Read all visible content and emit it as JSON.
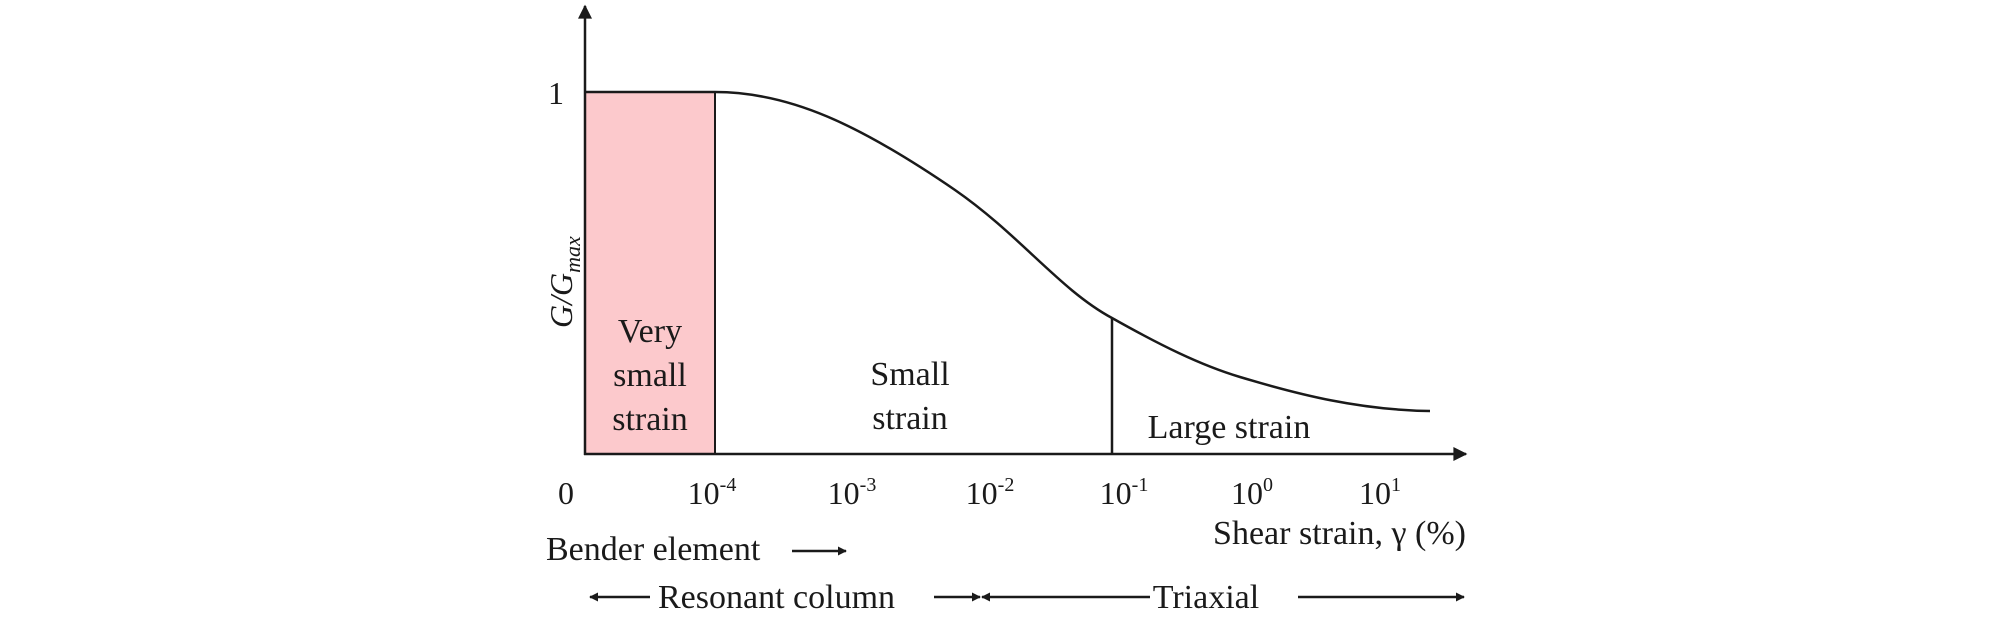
{
  "y_axis": {
    "label_main": "G",
    "label_sep": "/",
    "label_sub_base": "G",
    "label_sub": "max",
    "tick_one": "1"
  },
  "x_axis": {
    "label": "Shear strain, γ (%)",
    "ticks": [
      {
        "base": "0",
        "sup": ""
      },
      {
        "base": "10",
        "sup": "-4"
      },
      {
        "base": "10",
        "sup": "-3"
      },
      {
        "base": "10",
        "sup": "-2"
      },
      {
        "base": "10",
        "sup": "-1"
      },
      {
        "base": "10",
        "sup": "0"
      },
      {
        "base": "10",
        "sup": "1"
      }
    ]
  },
  "regions": {
    "very_small": [
      "Very",
      "small",
      "strain"
    ],
    "small": [
      "Small",
      "strain"
    ],
    "large": "Large strain"
  },
  "tests": {
    "bender": "Bender element",
    "resonant": "Resonant column",
    "triaxial": "Triaxial"
  },
  "colors": {
    "very_small_fill": "#fcc9cc",
    "line": "#1a1a1a"
  }
}
